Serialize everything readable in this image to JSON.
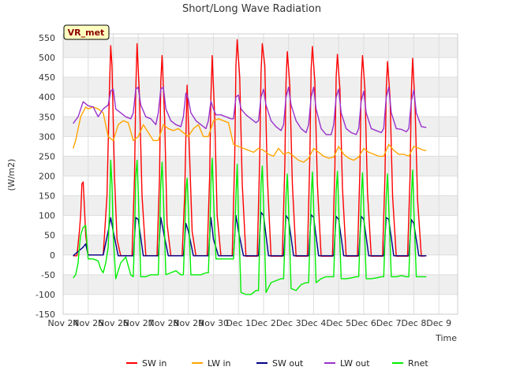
{
  "chart_data": {
    "type": "line",
    "title": "Short/Long Wave Radiation",
    "xlabel": "Time",
    "ylabel": "(W/m2)",
    "station_badge": "VR_met",
    "ylim": [
      -150,
      560
    ],
    "xlim": [
      0,
      15.75
    ],
    "yticks": [
      -150,
      -100,
      -50,
      0,
      50,
      100,
      150,
      200,
      250,
      300,
      350,
      400,
      450,
      500,
      550
    ],
    "xticks": [
      {
        "pos": 0,
        "label": "Nov 24"
      },
      {
        "pos": 1,
        "label": "Nov 25"
      },
      {
        "pos": 2,
        "label": "Nov 26"
      },
      {
        "pos": 3,
        "label": "Nov 27"
      },
      {
        "pos": 4,
        "label": "Nov 28"
      },
      {
        "pos": 5,
        "label": "Nov 29"
      },
      {
        "pos": 6,
        "label": "Nov 30"
      },
      {
        "pos": 7,
        "label": "Dec 1"
      },
      {
        "pos": 8,
        "label": "Dec 2"
      },
      {
        "pos": 9,
        "label": "Dec 3"
      },
      {
        "pos": 10,
        "label": "Dec 4"
      },
      {
        "pos": 11,
        "label": "Dec 5"
      },
      {
        "pos": 12,
        "label": "Dec 6"
      },
      {
        "pos": 13,
        "label": "Dec 7"
      },
      {
        "pos": 14,
        "label": "Dec 8"
      },
      {
        "pos": 15,
        "label": "Dec 9"
      }
    ],
    "grid": true,
    "legend_position": "bottom",
    "series": [
      {
        "name": "SW in",
        "color": "#ff0000",
        "x": [
          0.4,
          0.55,
          0.65,
          0.7,
          0.75,
          0.8,
          0.85,
          0.9,
          1.0,
          1.6,
          1.75,
          1.85,
          1.9,
          1.95,
          2.05,
          2.15,
          2.3,
          2.75,
          2.85,
          2.9,
          2.95,
          3.05,
          3.15,
          3.3,
          3.75,
          3.85,
          3.9,
          3.95,
          4.05,
          4.15,
          4.3,
          4.75,
          4.85,
          4.9,
          4.95,
          5.05,
          5.15,
          5.3,
          5.75,
          5.85,
          5.9,
          5.95,
          6.05,
          6.15,
          6.3,
          6.75,
          6.85,
          6.9,
          6.95,
          7.05,
          7.15,
          7.3,
          7.75,
          7.85,
          7.9,
          7.95,
          8.05,
          8.15,
          8.3,
          8.75,
          8.85,
          8.9,
          8.95,
          9.05,
          9.15,
          9.3,
          9.75,
          9.85,
          9.9,
          9.95,
          10.05,
          10.15,
          10.3,
          10.75,
          10.85,
          10.9,
          10.95,
          11.05,
          11.15,
          11.3,
          11.75,
          11.85,
          11.9,
          11.95,
          12.05,
          12.15,
          12.3,
          12.75,
          12.85,
          12.9,
          12.95,
          13.05,
          13.15,
          13.3,
          13.75,
          13.85,
          13.9,
          13.95,
          14.05,
          14.15,
          14.3,
          14.5
        ],
        "y": [
          -2,
          -2,
          60,
          100,
          180,
          185,
          120,
          50,
          0,
          0,
          150,
          420,
          530,
          480,
          200,
          40,
          -2,
          -2,
          200,
          420,
          535,
          400,
          150,
          -2,
          -2,
          200,
          440,
          505,
          350,
          80,
          -2,
          -2,
          150,
          300,
          430,
          250,
          60,
          -2,
          -2,
          200,
          400,
          505,
          350,
          100,
          -2,
          -2,
          250,
          480,
          545,
          450,
          180,
          -3,
          -3,
          250,
          460,
          535,
          480,
          200,
          -3,
          -3,
          230,
          440,
          515,
          430,
          180,
          -3,
          -3,
          250,
          470,
          528,
          440,
          180,
          -3,
          -3,
          220,
          450,
          508,
          420,
          170,
          -3,
          -3,
          220,
          440,
          505,
          420,
          160,
          -3,
          -3,
          200,
          420,
          490,
          400,
          150,
          -3,
          -3,
          200,
          410,
          498,
          380,
          140,
          -3,
          -2
        ]
      },
      {
        "name": "LW in",
        "color": "#ffa500",
        "x": [
          0.4,
          0.5,
          0.7,
          0.9,
          1.0,
          1.2,
          1.4,
          1.6,
          1.8,
          2.0,
          2.2,
          2.4,
          2.6,
          2.8,
          3.0,
          3.2,
          3.4,
          3.6,
          3.8,
          4.0,
          4.2,
          4.4,
          4.6,
          4.8,
          5.0,
          5.2,
          5.4,
          5.6,
          5.8,
          6.0,
          6.2,
          6.4,
          6.6,
          6.8,
          7.0,
          7.2,
          7.4,
          7.6,
          7.8,
          8.0,
          8.2,
          8.4,
          8.6,
          8.8,
          9.0,
          9.2,
          9.4,
          9.6,
          9.8,
          10.0,
          10.2,
          10.4,
          10.6,
          10.8,
          11.0,
          11.2,
          11.4,
          11.6,
          11.8,
          12.0,
          12.2,
          12.4,
          12.6,
          12.8,
          13.0,
          13.2,
          13.4,
          13.6,
          13.8,
          14.0,
          14.2,
          14.4,
          14.5
        ],
        "y": [
          270,
          290,
          350,
          375,
          370,
          375,
          370,
          360,
          300,
          290,
          330,
          340,
          335,
          290,
          300,
          330,
          310,
          290,
          290,
          330,
          320,
          315,
          320,
          310,
          300,
          320,
          330,
          300,
          300,
          340,
          345,
          340,
          335,
          280,
          275,
          270,
          265,
          260,
          270,
          265,
          255,
          250,
          270,
          255,
          260,
          250,
          240,
          235,
          245,
          270,
          260,
          250,
          245,
          248,
          275,
          255,
          245,
          240,
          248,
          270,
          260,
          255,
          250,
          250,
          280,
          265,
          255,
          255,
          250,
          275,
          270,
          265,
          265
        ]
      },
      {
        "name": "SW out",
        "color": "#00008b",
        "x": [
          0.4,
          0.8,
          0.9,
          1.0,
          1.6,
          1.8,
          1.9,
          2.0,
          2.2,
          2.8,
          2.9,
          3.0,
          3.2,
          3.8,
          3.9,
          4.0,
          4.2,
          4.8,
          4.9,
          5.0,
          5.2,
          5.8,
          5.9,
          6.0,
          6.2,
          6.8,
          6.9,
          7.0,
          7.2,
          7.8,
          7.9,
          8.0,
          8.2,
          8.8,
          8.9,
          9.0,
          9.2,
          9.8,
          9.9,
          10.0,
          10.2,
          10.8,
          10.9,
          11.0,
          11.2,
          11.8,
          11.9,
          12.0,
          12.2,
          12.8,
          12.9,
          13.0,
          13.2,
          13.8,
          13.9,
          14.0,
          14.2,
          14.5
        ],
        "y": [
          -2,
          20,
          28,
          0,
          0,
          60,
          95,
          60,
          -2,
          -2,
          95,
          90,
          -2,
          -2,
          95,
          60,
          -2,
          -2,
          80,
          60,
          -2,
          -2,
          95,
          40,
          -2,
          -2,
          100,
          60,
          -2,
          -2,
          108,
          100,
          -2,
          -2,
          100,
          90,
          -2,
          -2,
          102,
          95,
          -2,
          -2,
          98,
          90,
          -2,
          -2,
          98,
          90,
          -2,
          -2,
          95,
          90,
          -2,
          -2,
          90,
          80,
          -2,
          -2
        ]
      },
      {
        "name": "LW out",
        "color": "#9932cc",
        "x": [
          0.4,
          0.6,
          0.8,
          1.0,
          1.2,
          1.4,
          1.6,
          1.8,
          1.9,
          2.0,
          2.1,
          2.3,
          2.5,
          2.7,
          2.8,
          2.9,
          3.0,
          3.1,
          3.3,
          3.5,
          3.7,
          3.8,
          3.9,
          4.0,
          4.1,
          4.3,
          4.5,
          4.7,
          4.8,
          4.9,
          5.0,
          5.1,
          5.3,
          5.5,
          5.7,
          5.8,
          5.9,
          6.0,
          6.1,
          6.3,
          6.5,
          6.7,
          6.8,
          6.9,
          7.0,
          7.1,
          7.3,
          7.5,
          7.7,
          7.8,
          7.9,
          8.0,
          8.1,
          8.3,
          8.5,
          8.7,
          8.8,
          8.9,
          9.0,
          9.1,
          9.3,
          9.5,
          9.7,
          9.8,
          9.9,
          10.0,
          10.1,
          10.3,
          10.5,
          10.7,
          10.8,
          10.9,
          11.0,
          11.1,
          11.3,
          11.5,
          11.7,
          11.8,
          11.9,
          12.0,
          12.1,
          12.3,
          12.5,
          12.7,
          12.8,
          12.9,
          13.0,
          13.1,
          13.3,
          13.5,
          13.7,
          13.8,
          13.9,
          14.0,
          14.1,
          14.3,
          14.5
        ],
        "y": [
          333,
          350,
          388,
          378,
          375,
          350,
          370,
          380,
          415,
          420,
          370,
          360,
          350,
          345,
          360,
          420,
          425,
          380,
          350,
          345,
          330,
          360,
          420,
          425,
          370,
          340,
          330,
          325,
          350,
          410,
          395,
          360,
          340,
          330,
          320,
          340,
          390,
          370,
          355,
          355,
          350,
          345,
          345,
          400,
          405,
          370,
          355,
          345,
          335,
          340,
          400,
          420,
          380,
          340,
          325,
          315,
          330,
          400,
          425,
          380,
          340,
          320,
          310,
          330,
          400,
          425,
          370,
          320,
          305,
          305,
          330,
          400,
          420,
          360,
          320,
          310,
          305,
          320,
          390,
          415,
          360,
          320,
          315,
          310,
          320,
          400,
          425,
          360,
          320,
          318,
          312,
          320,
          390,
          418,
          360,
          325,
          323
        ]
      },
      {
        "name": "Rnet",
        "color": "#00ee00",
        "x": [
          0.4,
          0.5,
          0.6,
          0.65,
          0.7,
          0.8,
          0.9,
          1.0,
          1.2,
          1.4,
          1.5,
          1.6,
          1.7,
          1.8,
          1.85,
          1.9,
          1.95,
          2.0,
          2.1,
          2.3,
          2.5,
          2.7,
          2.8,
          2.85,
          2.9,
          2.95,
          3.0,
          3.1,
          3.3,
          3.5,
          3.7,
          3.8,
          3.85,
          3.9,
          3.95,
          4.0,
          4.1,
          4.3,
          4.5,
          4.7,
          4.8,
          4.85,
          4.9,
          4.95,
          5.0,
          5.1,
          5.3,
          5.5,
          5.7,
          5.8,
          5.85,
          5.9,
          5.95,
          6.0,
          6.1,
          6.3,
          6.5,
          6.7,
          6.8,
          6.85,
          6.9,
          6.95,
          7.0,
          7.1,
          7.3,
          7.5,
          7.7,
          7.8,
          7.85,
          7.9,
          7.95,
          8.0,
          8.1,
          8.3,
          8.5,
          8.7,
          8.8,
          8.85,
          8.9,
          8.95,
          9.0,
          9.1,
          9.3,
          9.5,
          9.7,
          9.8,
          9.85,
          9.9,
          9.95,
          10.0,
          10.1,
          10.3,
          10.5,
          10.7,
          10.8,
          10.85,
          10.9,
          10.95,
          11.0,
          11.1,
          11.3,
          11.5,
          11.7,
          11.8,
          11.85,
          11.9,
          11.95,
          12.0,
          12.1,
          12.3,
          12.5,
          12.7,
          12.8,
          12.85,
          12.9,
          12.95,
          13.0,
          13.1,
          13.3,
          13.5,
          13.7,
          13.8,
          13.85,
          13.9,
          13.95,
          14.0,
          14.1,
          14.3,
          14.5
        ],
        "y": [
          -58,
          -50,
          -20,
          20,
          50,
          70,
          75,
          -10,
          -10,
          -15,
          -35,
          -45,
          -20,
          20,
          110,
          240,
          180,
          50,
          -60,
          -20,
          -5,
          -50,
          -55,
          50,
          200,
          240,
          160,
          -55,
          -55,
          -50,
          -50,
          -50,
          60,
          180,
          235,
          150,
          -50,
          -45,
          -40,
          -50,
          -50,
          40,
          160,
          195,
          120,
          -50,
          -50,
          -50,
          -45,
          -45,
          50,
          180,
          245,
          150,
          -10,
          -10,
          -10,
          -10,
          -10,
          50,
          150,
          230,
          100,
          -95,
          -100,
          -100,
          -90,
          -90,
          40,
          180,
          225,
          130,
          -95,
          -70,
          -65,
          -60,
          -60,
          30,
          150,
          205,
          120,
          -85,
          -90,
          -75,
          -70,
          -70,
          30,
          150,
          210,
          120,
          -70,
          -60,
          -55,
          -55,
          -55,
          40,
          160,
          212,
          120,
          -60,
          -60,
          -58,
          -55,
          -55,
          40,
          150,
          208,
          120,
          -60,
          -60,
          -58,
          -55,
          -55,
          40,
          150,
          205,
          120,
          -55,
          -55,
          -52,
          -55,
          -55,
          40,
          150,
          215,
          120,
          -55,
          -55,
          -55
        ]
      }
    ]
  }
}
